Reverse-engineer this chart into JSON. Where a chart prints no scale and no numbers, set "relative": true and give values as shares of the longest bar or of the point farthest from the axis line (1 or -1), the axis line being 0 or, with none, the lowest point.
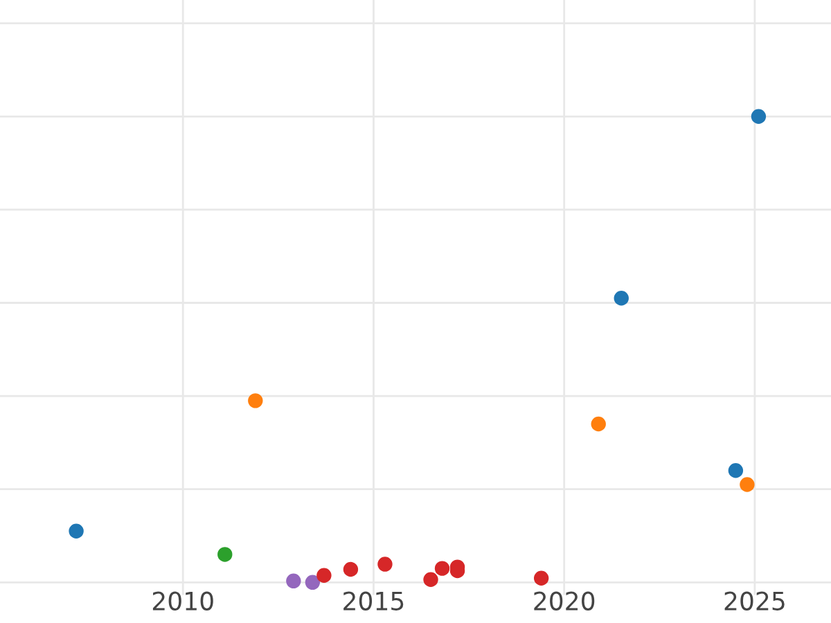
{
  "chart_data": {
    "type": "scatter",
    "relative": true,
    "marker": "circle",
    "grid": true,
    "tick_labels": "x",
    "xlim": [
      2005.2,
      2027
    ],
    "xticks": [
      2010,
      2015,
      2020,
      2025
    ],
    "series": [
      {
        "color": "#1f77b4",
        "x": [
          2007.2,
          2021.5,
          2024.5,
          2025.1
        ],
        "values": [
          0.11,
          0.61,
          0.24,
          1
        ]
      },
      {
        "color": "#ff7f0e",
        "x": [
          2011.9,
          2020.9,
          2024.8
        ],
        "values": [
          0.39,
          0.34,
          0.21
        ]
      },
      {
        "color": "#2ca02c",
        "x": [
          2011.1
        ],
        "values": [
          0.06
        ]
      },
      {
        "color": "#9467bd",
        "x": [
          2012.9,
          2013.4
        ],
        "values": [
          0.003,
          0
        ]
      },
      {
        "color": "#d62728",
        "x": [
          2013.7,
          2014.4,
          2015.3,
          2016.5,
          2016.8,
          2017.2,
          2017.2,
          2019.4
        ],
        "values": [
          0.015,
          0.028,
          0.039,
          0.006,
          0.03,
          0.033,
          0.025,
          0.009
        ]
      }
    ]
  }
}
